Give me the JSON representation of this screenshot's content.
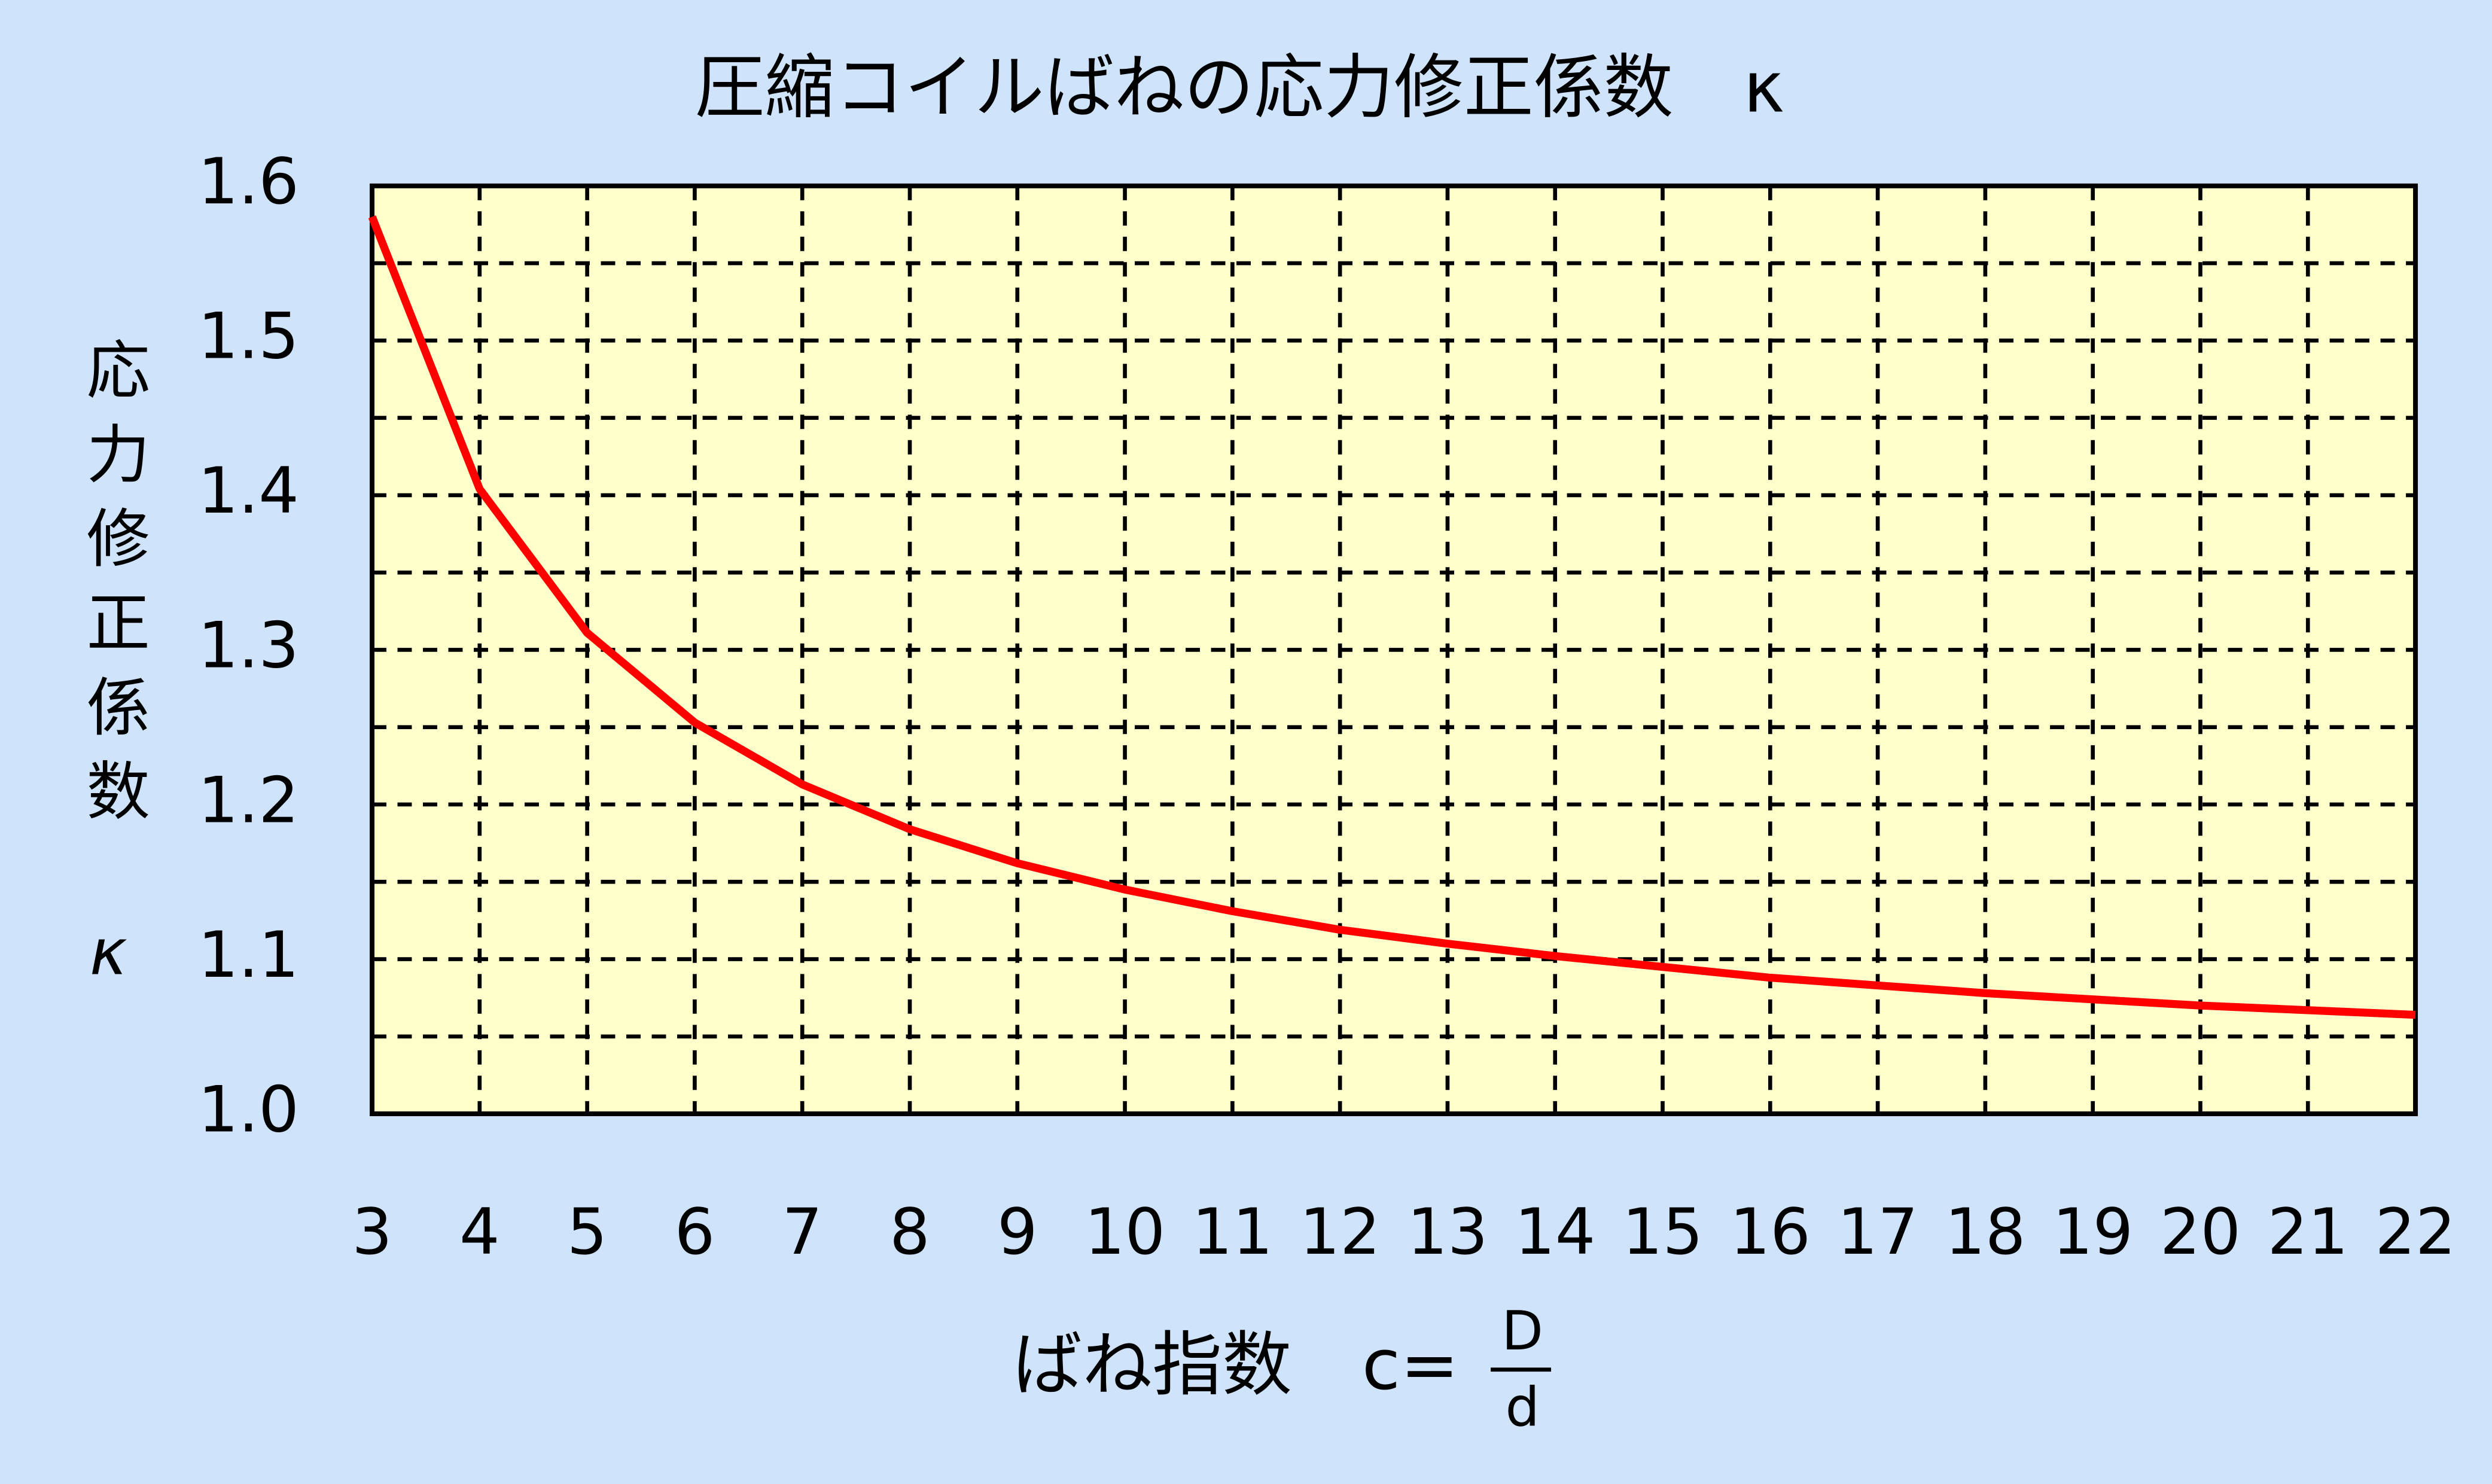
{
  "chart_data": {
    "type": "line",
    "title": "圧縮コイルばねの応力修正係数　κ",
    "x_label": {
      "text": "ばね指数　c=",
      "numerator": "D",
      "denominator": "d"
    },
    "y_label": {
      "text": "応力修正係数",
      "symbol": "κ"
    },
    "x": [
      3,
      4,
      5,
      6,
      7,
      8,
      9,
      10,
      11,
      12,
      13,
      14,
      15,
      16,
      17,
      18,
      19,
      20,
      21,
      22
    ],
    "series": [
      {
        "name": "κ",
        "color": "#ff0000",
        "values": [
          1.58,
          1.404,
          1.311,
          1.253,
          1.213,
          1.184,
          1.162,
          1.145,
          1.131,
          1.119,
          1.11,
          1.102,
          1.095,
          1.088,
          1.083,
          1.078,
          1.074,
          1.07,
          1.067,
          1.064
        ]
      }
    ],
    "xlim": [
      3,
      22
    ],
    "xticks": [
      3,
      4,
      5,
      6,
      7,
      8,
      9,
      10,
      11,
      12,
      13,
      14,
      15,
      16,
      17,
      18,
      19,
      20,
      21,
      22
    ],
    "ylim": [
      1,
      1.6
    ],
    "yticks": [
      {
        "value": 1,
        "label": "1.0"
      },
      1.1,
      1.2,
      1.3,
      1.4,
      1.5,
      1.6
    ],
    "grid": true,
    "minor_grid": true,
    "background": "#cfe4fb",
    "plot_background": "#ffffcc"
  }
}
